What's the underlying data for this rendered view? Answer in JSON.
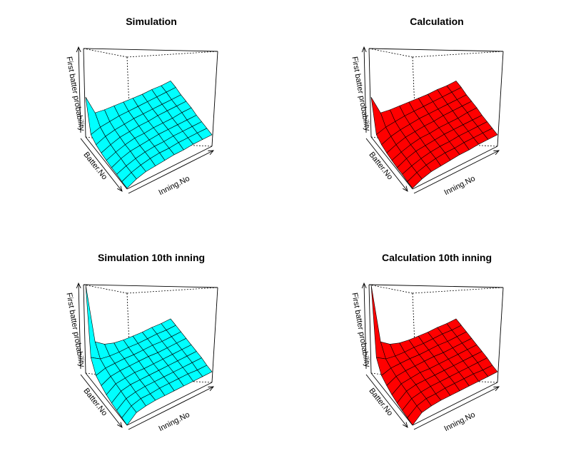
{
  "chart_data": [
    {
      "type": "surface3d",
      "title": "Simulation",
      "xlabel": "Inning.No",
      "ylabel": "Batter.No",
      "zlabel": "First batter probability",
      "color": "#00ffff",
      "surface_z": [
        [
          0.45,
          0.22,
          0.2,
          0.19,
          0.18,
          0.17,
          0.16,
          0.16,
          0.15,
          0.15
        ],
        [
          0.1,
          0.13,
          0.14,
          0.15,
          0.15,
          0.15,
          0.15,
          0.15,
          0.15,
          0.15
        ],
        [
          0.06,
          0.1,
          0.12,
          0.13,
          0.14,
          0.14,
          0.14,
          0.14,
          0.14,
          0.14
        ],
        [
          0.04,
          0.08,
          0.11,
          0.12,
          0.13,
          0.13,
          0.14,
          0.14,
          0.14,
          0.14
        ],
        [
          0.03,
          0.07,
          0.1,
          0.12,
          0.12,
          0.13,
          0.13,
          0.13,
          0.14,
          0.14
        ],
        [
          0.02,
          0.07,
          0.1,
          0.11,
          0.12,
          0.13,
          0.13,
          0.13,
          0.13,
          0.13
        ],
        [
          0.02,
          0.06,
          0.09,
          0.11,
          0.12,
          0.12,
          0.13,
          0.13,
          0.13,
          0.13
        ],
        [
          0.01,
          0.06,
          0.09,
          0.11,
          0.12,
          0.12,
          0.13,
          0.13,
          0.13,
          0.13
        ],
        [
          0.01,
          0.06,
          0.09,
          0.1,
          0.11,
          0.12,
          0.12,
          0.13,
          0.13,
          0.13
        ]
      ]
    },
    {
      "type": "surface3d",
      "title": "Calculation",
      "xlabel": "Inning.No",
      "ylabel": "Batter.No",
      "zlabel": "First batter probability",
      "color": "#ff0000",
      "surface_z": [
        [
          0.45,
          0.22,
          0.2,
          0.19,
          0.18,
          0.17,
          0.16,
          0.16,
          0.15,
          0.15
        ],
        [
          0.1,
          0.13,
          0.14,
          0.15,
          0.15,
          0.15,
          0.15,
          0.15,
          0.15,
          0.15
        ],
        [
          0.06,
          0.1,
          0.12,
          0.13,
          0.14,
          0.14,
          0.14,
          0.14,
          0.14,
          0.14
        ],
        [
          0.04,
          0.08,
          0.11,
          0.12,
          0.13,
          0.13,
          0.14,
          0.14,
          0.14,
          0.14
        ],
        [
          0.03,
          0.07,
          0.1,
          0.12,
          0.12,
          0.13,
          0.13,
          0.13,
          0.14,
          0.14
        ],
        [
          0.02,
          0.07,
          0.1,
          0.11,
          0.12,
          0.13,
          0.13,
          0.13,
          0.13,
          0.13
        ],
        [
          0.02,
          0.06,
          0.09,
          0.11,
          0.12,
          0.12,
          0.13,
          0.13,
          0.13,
          0.13
        ],
        [
          0.01,
          0.06,
          0.09,
          0.11,
          0.12,
          0.12,
          0.13,
          0.13,
          0.13,
          0.13
        ],
        [
          0.01,
          0.06,
          0.09,
          0.1,
          0.11,
          0.12,
          0.12,
          0.13,
          0.13,
          0.13
        ]
      ]
    },
    {
      "type": "surface3d",
      "title": "Simulation 10th inning",
      "xlabel": "Inning.No",
      "ylabel": "Batter.No",
      "zlabel": "First batter probability",
      "color": "#00ffff",
      "surface_z": [
        [
          1.0,
          0.3,
          0.22,
          0.18,
          0.16,
          0.15,
          0.14,
          0.14,
          0.13,
          0.13
        ],
        [
          0.25,
          0.18,
          0.16,
          0.15,
          0.15,
          0.14,
          0.14,
          0.14,
          0.13,
          0.13
        ],
        [
          0.12,
          0.15,
          0.15,
          0.15,
          0.14,
          0.14,
          0.14,
          0.13,
          0.13,
          0.13
        ],
        [
          0.08,
          0.13,
          0.14,
          0.14,
          0.14,
          0.14,
          0.13,
          0.13,
          0.13,
          0.13
        ],
        [
          0.05,
          0.12,
          0.13,
          0.14,
          0.13,
          0.13,
          0.13,
          0.13,
          0.13,
          0.13
        ],
        [
          0.03,
          0.11,
          0.13,
          0.13,
          0.13,
          0.13,
          0.13,
          0.13,
          0.13,
          0.13
        ],
        [
          0.02,
          0.1,
          0.12,
          0.13,
          0.13,
          0.13,
          0.13,
          0.13,
          0.13,
          0.13
        ],
        [
          0.01,
          0.09,
          0.12,
          0.12,
          0.13,
          0.13,
          0.13,
          0.13,
          0.12,
          0.12
        ],
        [
          0.0,
          0.09,
          0.11,
          0.12,
          0.12,
          0.12,
          0.12,
          0.12,
          0.12,
          0.12
        ]
      ]
    },
    {
      "type": "surface3d",
      "title": "Calculation 10th inning",
      "xlabel": "Inning.No",
      "ylabel": "Batter.No",
      "zlabel": "First batter probability",
      "color": "#ff0000",
      "surface_z": [
        [
          1.0,
          0.3,
          0.22,
          0.18,
          0.16,
          0.15,
          0.14,
          0.14,
          0.13,
          0.13
        ],
        [
          0.25,
          0.18,
          0.16,
          0.15,
          0.15,
          0.14,
          0.14,
          0.14,
          0.13,
          0.13
        ],
        [
          0.12,
          0.15,
          0.15,
          0.15,
          0.14,
          0.14,
          0.14,
          0.13,
          0.13,
          0.13
        ],
        [
          0.08,
          0.13,
          0.14,
          0.14,
          0.14,
          0.14,
          0.13,
          0.13,
          0.13,
          0.13
        ],
        [
          0.05,
          0.12,
          0.13,
          0.14,
          0.13,
          0.13,
          0.13,
          0.13,
          0.13,
          0.13
        ],
        [
          0.03,
          0.11,
          0.13,
          0.13,
          0.13,
          0.13,
          0.13,
          0.13,
          0.13,
          0.13
        ],
        [
          0.02,
          0.1,
          0.12,
          0.13,
          0.13,
          0.13,
          0.13,
          0.13,
          0.13,
          0.13
        ],
        [
          0.01,
          0.09,
          0.12,
          0.12,
          0.13,
          0.13,
          0.13,
          0.13,
          0.12,
          0.12
        ],
        [
          0.0,
          0.09,
          0.11,
          0.12,
          0.12,
          0.12,
          0.12,
          0.12,
          0.12,
          0.12
        ]
      ]
    }
  ]
}
